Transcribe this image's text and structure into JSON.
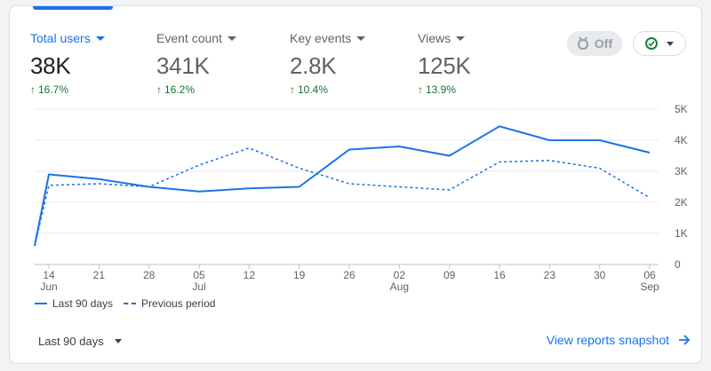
{
  "metrics": [
    {
      "label": "Total users",
      "value": "38K",
      "change": "16.7%"
    },
    {
      "label": "Event count",
      "value": "341K",
      "change": "16.2%"
    },
    {
      "label": "Key events",
      "value": "2.8K",
      "change": "10.4%"
    },
    {
      "label": "Views",
      "value": "125K",
      "change": "13.9%"
    }
  ],
  "toolbar": {
    "insights_label": "Off"
  },
  "legend": {
    "current": "Last 90 days",
    "previous": "Previous period"
  },
  "footer": {
    "date_range": "Last 90 days",
    "link": "View reports snapshot"
  },
  "colors": {
    "accent": "#1a73e8",
    "positive": "#137333"
  },
  "icons": {
    "insights": "insights-badge-icon",
    "check": "check-circle-icon",
    "arrow": "arrow-right-icon"
  },
  "chart_data": {
    "type": "line",
    "x": [
      "14",
      "21",
      "28",
      "05",
      "12",
      "19",
      "26",
      "02",
      "09",
      "16",
      "23",
      "30",
      "06"
    ],
    "x_sublabels": [
      "Jun",
      "",
      "",
      "Jul",
      "",
      "",
      "",
      "Aug",
      "",
      "",
      "",
      "",
      "Sep"
    ],
    "y_ticks": [
      "0",
      "1K",
      "2K",
      "3K",
      "4K",
      "5K"
    ],
    "ylim": [
      0,
      5000
    ],
    "y_axis_position": "right",
    "grid": true,
    "series": [
      {
        "name": "Last 90 days",
        "style": "solid",
        "start_value": 600,
        "values": [
          2900,
          2750,
          2500,
          2350,
          2450,
          2500,
          3700,
          3800,
          3500,
          4450,
          4000,
          4000,
          3600
        ]
      },
      {
        "name": "Previous period",
        "style": "dashed",
        "start_value": 600,
        "values": [
          2550,
          2600,
          2500,
          3200,
          3750,
          3100,
          2600,
          2500,
          2400,
          3300,
          3350,
          3100,
          2150
        ]
      }
    ]
  }
}
